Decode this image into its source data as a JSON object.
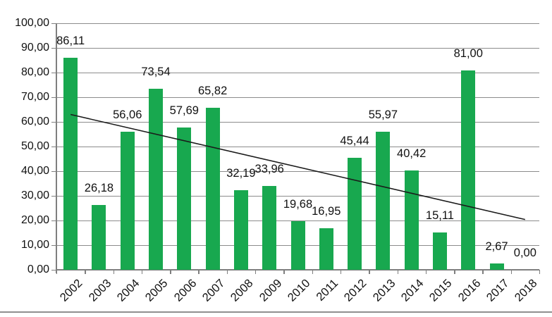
{
  "chart_data": {
    "type": "bar",
    "title": "",
    "xlabel": "",
    "ylabel": "",
    "categories": [
      "2002",
      "2003",
      "2004",
      "2005",
      "2006",
      "2007",
      "2008",
      "2009",
      "2010",
      "2011",
      "2012",
      "2013",
      "2014",
      "2015",
      "2016",
      "2017",
      "2018"
    ],
    "values": [
      86.11,
      26.18,
      56.06,
      73.54,
      57.69,
      65.82,
      32.19,
      33.96,
      19.68,
      16.95,
      45.44,
      55.97,
      40.42,
      15.11,
      81.0,
      2.67,
      0.0
    ],
    "value_labels": [
      "86,11",
      "26,18",
      "56,06",
      "73,54",
      "57,69",
      "65,82",
      "32,19",
      "33,96",
      "19,68",
      "16,95",
      "45,44",
      "55,97",
      "40,42",
      "15,11",
      "81,00",
      "2,67",
      "0,00"
    ],
    "y_axis": {
      "min": 0,
      "max": 100,
      "step": 10,
      "tick_labels": [
        "100,00",
        "90,00",
        "80,00",
        "70,00",
        "60,00",
        "50,00",
        "40,00",
        "30,00",
        "20,00",
        "10,00",
        "0,00"
      ]
    },
    "grid": true,
    "legend": "none",
    "trendline": {
      "type": "linear",
      "start_value": 63.0,
      "end_value": 20.4
    },
    "colors": {
      "bar": "#18A84F",
      "grid": "#8C8C8C",
      "axis": "#7F7F7F",
      "trend": "#1A1A1A",
      "text": "#111111",
      "background": "#FFFFFF",
      "bottom_rule": "#8F8F8F"
    }
  }
}
